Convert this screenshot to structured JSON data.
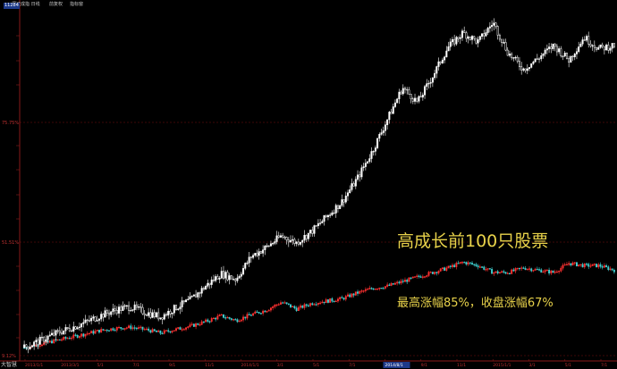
{
  "header": {
    "items": [
      "深证成指 日线",
      "前复权",
      "指标窗"
    ]
  },
  "price_box_label": "11284",
  "logo_text": "大智慧",
  "annotation": {
    "title": "高成长前100只股票",
    "subtitle": "最高涨幅85%，收盘涨幅67%"
  },
  "colors": {
    "background": "#000000",
    "up_candle": "#ffffff",
    "down_candle": "#000000",
    "index_up": "#ff3030",
    "index_down": "#3fd0d0",
    "grid": "#7a1010",
    "axis_text": "#c03030",
    "annotation": "#e8d24a"
  },
  "chart_data": {
    "type": "candlestick",
    "title": "高成长前100只股票",
    "subtitle": "最高涨幅85%，收盘涨幅67%",
    "ylabels": [
      "75.75%",
      "51.51%",
      "9.12%"
    ],
    "xlabels": [
      "2013/1/1",
      "2013/3/1",
      "5/1",
      "7/1",
      "9/1",
      "11/1",
      "2014/1/1",
      "3/1",
      "5/1",
      "7/1",
      "2014/8/1",
      "9/1",
      "11/1",
      "2015/1/1",
      "3/1",
      "5/1",
      "7/1"
    ],
    "highlighted_xlabel": "2014/8/1",
    "series": [
      {
        "name": "高成长前100只股票",
        "style": "candlestick-white",
        "values": [
          0,
          6,
          12,
          17,
          22,
          28,
          33,
          36,
          31,
          27,
          35,
          42,
          54,
          65,
          60,
          80,
          88,
          98,
          92,
          102,
          115,
          128,
          148,
          172,
          200,
          228,
          215,
          238,
          263,
          276,
          268,
          285,
          258,
          244,
          254,
          265,
          252,
          272,
          262,
          265
        ]
      },
      {
        "name": "指数",
        "style": "candlestick-red-cyan",
        "values": [
          0,
          3,
          6,
          9,
          12,
          15,
          17,
          18,
          16,
          13,
          16,
          19,
          23,
          28,
          24,
          29,
          33,
          40,
          34,
          39,
          41,
          43,
          48,
          52,
          54,
          58,
          62,
          66,
          70,
          75,
          72,
          66,
          66,
          70,
          68,
          66,
          74,
          72,
          72,
          68
        ]
      }
    ],
    "ylim": [
      -10,
      300
    ],
    "grid": true,
    "legend": "none"
  }
}
